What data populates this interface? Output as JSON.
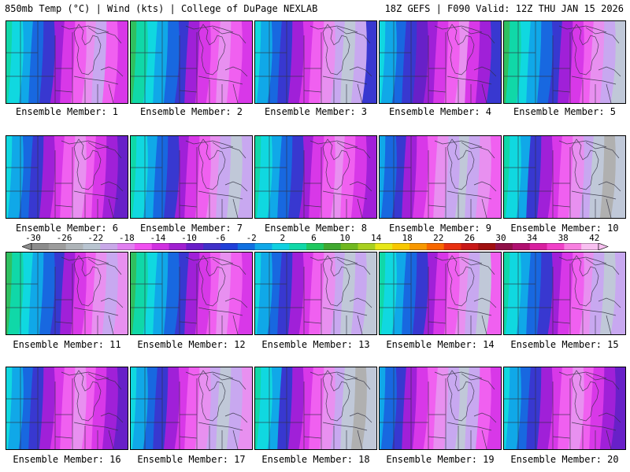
{
  "header": {
    "left": "850mb Temp (°C) | Wind (kts) | College of DuPage NEXLAB",
    "right": "18Z GEFS | F090 Valid: 12Z THU JAN 15 2026"
  },
  "members": [
    {
      "label": "Ensemble Member: 1"
    },
    {
      "label": "Ensemble Member: 2"
    },
    {
      "label": "Ensemble Member: 3"
    },
    {
      "label": "Ensemble Member: 4"
    },
    {
      "label": "Ensemble Member: 5"
    },
    {
      "label": "Ensemble Member: 6"
    },
    {
      "label": "Ensemble Member: 7"
    },
    {
      "label": "Ensemble Member: 8"
    },
    {
      "label": "Ensemble Member: 9"
    },
    {
      "label": "Ensemble Member: 10"
    },
    {
      "label": "Ensemble Member: 11"
    },
    {
      "label": "Ensemble Member: 12"
    },
    {
      "label": "Ensemble Member: 13"
    },
    {
      "label": "Ensemble Member: 14"
    },
    {
      "label": "Ensemble Member: 15"
    },
    {
      "label": "Ensemble Member: 16"
    },
    {
      "label": "Ensemble Member: 17"
    },
    {
      "label": "Ensemble Member: 18"
    },
    {
      "label": "Ensemble Member: 19"
    },
    {
      "label": "Ensemble Member: 20"
    }
  ],
  "colorbar": {
    "ticks": [
      "-30",
      "-26",
      "-22",
      "-18",
      "-14",
      "-10",
      "-6",
      "-2",
      "2",
      "6",
      "10",
      "14",
      "18",
      "22",
      "26",
      "30",
      "34",
      "38",
      "42"
    ],
    "colors": [
      "#8c8c8c",
      "#9c9c9c",
      "#aeb4b8",
      "#b8c4d0",
      "#c8a8e8",
      "#e080f0",
      "#f050f0",
      "#d030e0",
      "#a020d0",
      "#6a1ec8",
      "#4030c8",
      "#2040d8",
      "#1070e0",
      "#10a8e8",
      "#10d0e0",
      "#10d8a8",
      "#20c860",
      "#40a830",
      "#70b820",
      "#a8d020",
      "#e8e818",
      "#f8c800",
      "#f89800",
      "#f86800",
      "#e83010",
      "#c81818",
      "#a01010",
      "#901048",
      "#b01070",
      "#d820a0",
      "#f040c8",
      "#f880e0",
      "#f8c0f0"
    ]
  }
}
